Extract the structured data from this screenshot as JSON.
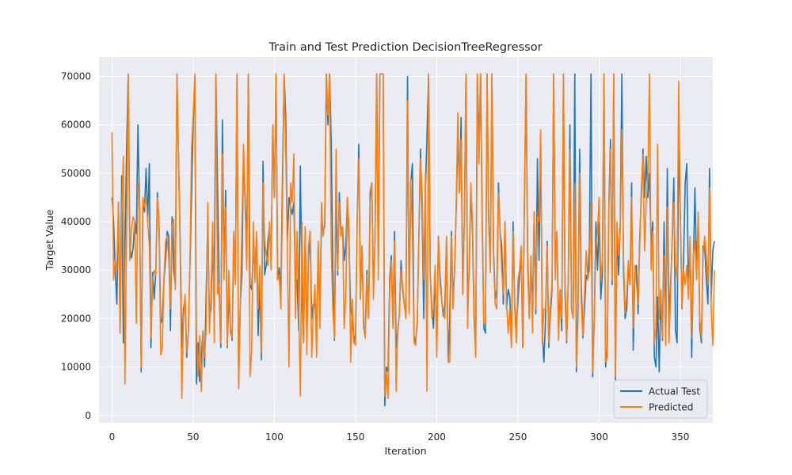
{
  "chart_data": {
    "type": "line",
    "title": "Train and Test Prediction DecisionTreeRegressor",
    "xlabel": "Iteration",
    "ylabel": "Target Value",
    "xlim": [
      -8,
      370
    ],
    "ylim": [
      -1500,
      74000
    ],
    "x_ticks": [
      0,
      50,
      100,
      150,
      200,
      250,
      300,
      350
    ],
    "y_ticks": [
      0,
      10000,
      20000,
      30000,
      40000,
      50000,
      60000,
      70000
    ],
    "grid": true,
    "legend_position": "bottom-right",
    "series": [
      {
        "name": "Actual Test",
        "color": "#1f77b4",
        "x_start": 0,
        "x_step": 1,
        "values": [
          45000,
          40000,
          30000,
          23000,
          44000,
          17000,
          49500,
          15000,
          35000,
          55000,
          70500,
          35000,
          32500,
          34500,
          40000,
          37500,
          60000,
          42000,
          9000,
          44000,
          42000,
          51000,
          40000,
          52000,
          14000,
          29500,
          24000,
          30000,
          46000,
          39000,
          19000,
          20000,
          28000,
          32000,
          38000,
          37000,
          17500,
          41000,
          30000,
          27000,
          70500,
          53000,
          36000,
          14000,
          22000,
          24000,
          12000,
          17000,
          31000,
          45000,
          60000,
          70000,
          6500,
          15000,
          7000,
          12000,
          17500,
          10000,
          25000,
          40000,
          20000,
          22000,
          36000,
          30000,
          70500,
          48000,
          26000,
          14000,
          61000,
          30000,
          46500,
          14000,
          25000,
          18000,
          15500,
          37000,
          29000,
          70500,
          6000,
          23000,
          29000,
          54000,
          45000,
          35000,
          70500,
          27000,
          26000,
          33000,
          30500,
          37000,
          16500,
          27000,
          11500,
          52500,
          29000,
          31000,
          36000,
          39000,
          32000,
          60000,
          45000,
          70500,
          28000,
          30500,
          25000,
          49000,
          70500,
          62000,
          36000,
          45000,
          43000,
          41500,
          44000,
          27000,
          28000,
          17500,
          51500,
          25500,
          15000,
          38000,
          16500,
          32000,
          38000,
          20000,
          23000,
          23000,
          16500,
          35000,
          21000,
          40000,
          38000,
          39000,
          70500,
          60000,
          70500,
          57000,
          30500,
          15500,
          45000,
          29000,
          46000,
          38000,
          39000,
          32000,
          35000,
          45000,
          35000,
          22000,
          20000,
          15000,
          17000,
          40500,
          56000,
          24000,
          35000,
          18000,
          18000,
          30000,
          20000,
          46000,
          48000,
          26000,
          36500,
          70500,
          32000,
          70500,
          70500,
          70500,
          2000,
          10000,
          9000,
          28000,
          33000,
          19000,
          38000,
          14000,
          17500,
          21000,
          32000,
          26000,
          23000,
          21000,
          70000,
          22000,
          48000,
          52000,
          16500,
          15000,
          19000,
          37000,
          55000,
          42000,
          20000,
          46000,
          58000,
          70500,
          29000,
          22000,
          18000,
          30000,
          13500,
          37000,
          29000,
          24000,
          20500,
          23000,
          36000,
          11000,
          20000,
          38000,
          24000,
          30000,
          43000,
          58000,
          46000,
          61500,
          26000,
          40000,
          70500,
          23000,
          30000,
          47000,
          38000,
          20000,
          12500,
          70500,
          56000,
          70500,
          41000,
          18000,
          17000,
          70500,
          40000,
          31000,
          70500,
          34000,
          24000,
          26000,
          48000,
          38000,
          35000,
          23000,
          40000,
          22000,
          26000,
          24500,
          15000,
          40000,
          23000,
          18000,
          23500,
          29000,
          33000,
          14000,
          45000,
          70500,
          33000,
          20000,
          31000,
          22000,
          42000,
          21000,
          53000,
          32000,
          58000,
          17000,
          11000,
          20000,
          36000,
          14000,
          21000,
          26000,
          70500,
          30000,
          38000,
          18000,
          26000,
          17500,
          70500,
          25000,
          15000,
          28000,
          60000,
          22000,
          20000,
          70500,
          9000,
          24000,
          55000,
          27000,
          16000,
          22000,
          29000,
          28000,
          35000,
          70500,
          8000,
          20000,
          40000,
          30000,
          40000,
          24000,
          29000,
          70500,
          10000,
          14000,
          44000,
          57000,
          27000,
          70500,
          7000,
          38000,
          29000,
          40000,
          70500,
          30000,
          20000,
          22000,
          31000,
          27000,
          48000,
          13500,
          29500,
          31000,
          21000,
          37000,
          45000,
          55000,
          45000,
          53500,
          45000,
          50000,
          35000,
          40000,
          12000,
          10000,
          24500,
          9000,
          25000,
          15500,
          40000,
          16000,
          51000,
          20000,
          27000,
          36000,
          49000,
          17500,
          15000,
          55000,
          42000,
          22000,
          32000,
          48000,
          52000,
          26000,
          35000,
          12000,
          31000,
          47000,
          30000,
          40000,
          18000,
          15000,
          35000,
          35000,
          28000,
          23000,
          51000,
          24000,
          34000,
          36000
        ]
      },
      {
        "name": "Predicted",
        "color": "#ff7f0e",
        "x_start": 0,
        "x_step": 1,
        "values": [
          58500,
          28000,
          32000,
          30000,
          44000,
          17000,
          42000,
          53500,
          6500,
          38000,
          70500,
          32000,
          38500,
          41000,
          40000,
          19000,
          48000,
          43000,
          10000,
          45000,
          43000,
          45000,
          40000,
          35000,
          16000,
          28000,
          30000,
          29000,
          45000,
          40000,
          12500,
          14000,
          28000,
          36000,
          37000,
          32000,
          22000,
          39000,
          40500,
          26000,
          70500,
          53000,
          35000,
          3500,
          20000,
          25000,
          13000,
          17000,
          31000,
          55000,
          62000,
          70500,
          17000,
          8000,
          16500,
          5000,
          17500,
          12000,
          18000,
          44000,
          17000,
          25000,
          40000,
          15000,
          70500,
          25000,
          27000,
          15000,
          54000,
          28000,
          43000,
          14500,
          30000,
          17000,
          16000,
          38000,
          27000,
          70500,
          5500,
          23000,
          39000,
          56000,
          43000,
          30000,
          70500,
          8000,
          13000,
          40000,
          27500,
          38000,
          22000,
          31000,
          13000,
          48000,
          36000,
          33000,
          31000,
          40000,
          30000,
          60000,
          45000,
          70500,
          28000,
          29000,
          22000,
          44000,
          70500,
          55000,
          34000,
          10000,
          48000,
          44000,
          54000,
          20000,
          38000,
          22000,
          4000,
          40000,
          15000,
          39000,
          12500,
          35000,
          38000,
          12000,
          21500,
          27000,
          12000,
          36000,
          18000,
          44000,
          37000,
          40000,
          70500,
          62000,
          70500,
          35000,
          22000,
          16000,
          55000,
          30000,
          44000,
          37000,
          39000,
          18000,
          25000,
          45000,
          38000,
          11000,
          24000,
          15000,
          14500,
          40500,
          53000,
          24000,
          35000,
          18000,
          16000,
          29000,
          20000,
          44000,
          48000,
          24000,
          36500,
          70500,
          28000,
          70500,
          70500,
          70500,
          4000,
          9000,
          3500,
          26000,
          32000,
          18000,
          36000,
          5000,
          18000,
          21000,
          30000,
          27000,
          23000,
          20000,
          65000,
          21000,
          49000,
          38000,
          15000,
          14500,
          20000,
          36000,
          53000,
          46000,
          28000,
          50000,
          5000,
          70500,
          29000,
          20000,
          22000,
          31000,
          12000,
          37000,
          27000,
          24000,
          21000,
          20000,
          37000,
          11000,
          11000,
          37000,
          22000,
          30000,
          44000,
          62500,
          46000,
          57000,
          25000,
          40000,
          70500,
          18000,
          32000,
          48000,
          40000,
          22000,
          12000,
          70500,
          52000,
          70500,
          38000,
          19000,
          19000,
          70500,
          40500,
          29500,
          70500,
          32000,
          23000,
          22000,
          46000,
          38000,
          30000,
          25000,
          40000,
          23000,
          17000,
          22000,
          14000,
          38000,
          22000,
          15000,
          28000,
          30000,
          35000,
          14000,
          45000,
          70500,
          30000,
          20000,
          33000,
          17000,
          42000,
          22000,
          41000,
          40000,
          59000,
          15000,
          22000,
          22000,
          35000,
          15000,
          23000,
          27000,
          70500,
          28000,
          38000,
          15500,
          26000,
          20000,
          70500,
          28000,
          15500,
          28000,
          55000,
          22000,
          20000,
          48000,
          10000,
          20000,
          50000,
          23000,
          16500,
          25000,
          34000,
          28000,
          30000,
          44000,
          9000,
          20000,
          35000,
          38000,
          45000,
          28000,
          32000,
          70500,
          11000,
          12000,
          43000,
          55000,
          28000,
          70500,
          8000,
          40000,
          33000,
          38000,
          59000,
          33000,
          21000,
          25000,
          32000,
          27000,
          45000,
          18000,
          31000,
          27000,
          23000,
          35000,
          47000,
          54000,
          34000,
          44000,
          49000,
          70500,
          30000,
          38000,
          15000,
          18000,
          56000,
          20000,
          26000,
          16000,
          33000,
          14500,
          43000,
          15000,
          25000,
          37000,
          44000,
          31000,
          28000,
          69000,
          41000,
          22000,
          30000,
          27000,
          31000,
          24000,
          37000,
          16000,
          33000,
          36000,
          28000,
          42000,
          20000,
          16000,
          33000,
          37000,
          33000,
          27000,
          47000,
          22000,
          14500,
          30000
        ]
      }
    ]
  }
}
